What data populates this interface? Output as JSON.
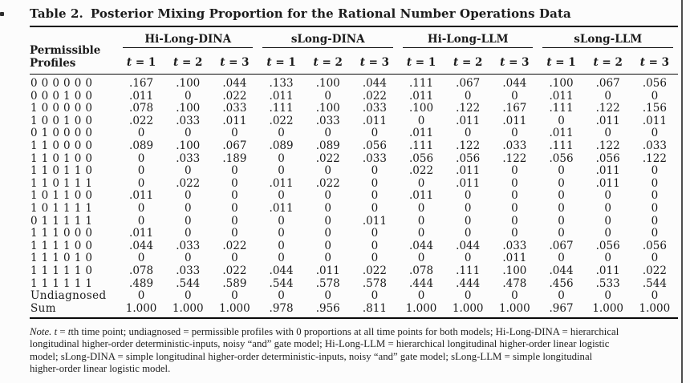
{
  "page": {
    "title_label": "Table 2.",
    "title_text": "Posterior Mixing Proportion for the Rational Number Operations Data"
  },
  "table": {
    "row_header": {
      "line1": "Permissible",
      "line2": "Profiles"
    },
    "groups": [
      {
        "label": "Hi-Long-DINA"
      },
      {
        "label": "sLong-DINA"
      },
      {
        "label": "Hi-Long-LLM"
      },
      {
        "label": "sLong-LLM"
      }
    ],
    "time_labels": [
      "t = 1",
      "t = 2",
      "t = 3"
    ],
    "rows": [
      {
        "profile": "0 0 0 0 0 0",
        "values": [
          ".167",
          ".100",
          ".044",
          ".133",
          ".100",
          ".044",
          ".111",
          ".067",
          ".044",
          ".100",
          ".067",
          ".056"
        ]
      },
      {
        "profile": "0 0 0 1 0 0",
        "values": [
          ".011",
          "0",
          ".022",
          ".011",
          "0",
          ".022",
          ".011",
          "0",
          "0",
          ".011",
          "0",
          "0"
        ]
      },
      {
        "profile": "1 0 0 0 0 0",
        "values": [
          ".078",
          ".100",
          ".033",
          ".111",
          ".100",
          ".033",
          ".100",
          ".122",
          ".167",
          ".111",
          ".122",
          ".156"
        ]
      },
      {
        "profile": "1 0 0 1 0 0",
        "values": [
          ".022",
          ".033",
          ".011",
          ".022",
          ".033",
          ".011",
          "0",
          ".011",
          ".011",
          "0",
          ".011",
          ".011"
        ]
      },
      {
        "profile": "0 1 0 0 0 0",
        "values": [
          "0",
          "0",
          "0",
          "0",
          "0",
          "0",
          ".011",
          "0",
          "0",
          ".011",
          "0",
          "0"
        ]
      },
      {
        "profile": "1 1 0 0 0 0",
        "values": [
          ".089",
          ".100",
          ".067",
          ".089",
          ".089",
          ".056",
          ".111",
          ".122",
          ".033",
          ".111",
          ".122",
          ".033"
        ]
      },
      {
        "profile": "1 1 0 1 0 0",
        "values": [
          "0",
          ".033",
          ".189",
          "0",
          ".022",
          ".033",
          ".056",
          ".056",
          ".122",
          ".056",
          ".056",
          ".122"
        ]
      },
      {
        "profile": "1 1 0 1 1 0",
        "values": [
          "0",
          "0",
          "0",
          "0",
          "0",
          "0",
          ".022",
          ".011",
          "0",
          "0",
          ".011",
          "0"
        ]
      },
      {
        "profile": "1 1 0 1 1 1",
        "values": [
          "0",
          ".022",
          "0",
          ".011",
          ".022",
          "0",
          "0",
          ".011",
          "0",
          "0",
          ".011",
          "0"
        ]
      },
      {
        "profile": "1 0 1 1 0 0",
        "values": [
          ".011",
          "0",
          "0",
          "0",
          "0",
          "0",
          ".011",
          "0",
          "0",
          "0",
          "0",
          "0"
        ]
      },
      {
        "profile": "1 0 1 1 1 1",
        "values": [
          "0",
          "0",
          "0",
          ".011",
          "0",
          "0",
          "0",
          "0",
          "0",
          "0",
          "0",
          "0"
        ]
      },
      {
        "profile": "0 1 1 1 1 1",
        "values": [
          "0",
          "0",
          "0",
          "0",
          "0",
          ".011",
          "0",
          "0",
          "0",
          "0",
          "0",
          "0"
        ]
      },
      {
        "profile": "1 1 1 0 0 0",
        "values": [
          ".011",
          "0",
          "0",
          "0",
          "0",
          "0",
          "0",
          "0",
          "0",
          "0",
          "0",
          "0"
        ]
      },
      {
        "profile": "1 1 1 1 0 0",
        "values": [
          ".044",
          ".033",
          ".022",
          "0",
          "0",
          "0",
          ".044",
          ".044",
          ".033",
          ".067",
          ".056",
          ".056"
        ]
      },
      {
        "profile": "1 1 1 0 1 0",
        "values": [
          "0",
          "0",
          "0",
          "0",
          "0",
          "0",
          "0",
          "0",
          ".011",
          "0",
          "0",
          "0"
        ]
      },
      {
        "profile": "1 1 1 1 1 0",
        "values": [
          ".078",
          ".033",
          ".022",
          ".044",
          ".011",
          ".022",
          ".078",
          ".111",
          ".100",
          ".044",
          ".011",
          ".022"
        ]
      },
      {
        "profile": "1 1 1 1 1 1",
        "values": [
          ".489",
          ".544",
          ".589",
          ".544",
          ".578",
          ".578",
          ".444",
          ".444",
          ".478",
          ".456",
          ".533",
          ".544"
        ]
      },
      {
        "profile": "Undiagnosed",
        "values": [
          "0",
          "0",
          "0",
          "0",
          "0",
          "0",
          "0",
          "0",
          "0",
          "0",
          "0",
          "0"
        ]
      },
      {
        "profile": "Sum",
        "values": [
          "1.000",
          "1.000",
          "1.000",
          ".978",
          ".956",
          ".811",
          "1.000",
          "1.000",
          "1.000",
          ".967",
          "1.000",
          "1.000"
        ]
      }
    ]
  },
  "note": {
    "label": "Note.",
    "lines": [
      "t = tth time point; undiagnosed = permissible profiles with 0 proportions at all time points for both models; Hi-Long-DINA = hierarchical",
      "longitudinal higher-order deterministic-inputs, noisy “and” gate model; Hi-Long-LLM = hierarchical longitudinal higher-order linear logistic",
      "model; sLong-DINA = simple longitudinal higher-order deterministic-inputs, noisy “and” gate model; sLong-LLM = simple longitudinal",
      "higher-order linear logistic model."
    ]
  }
}
